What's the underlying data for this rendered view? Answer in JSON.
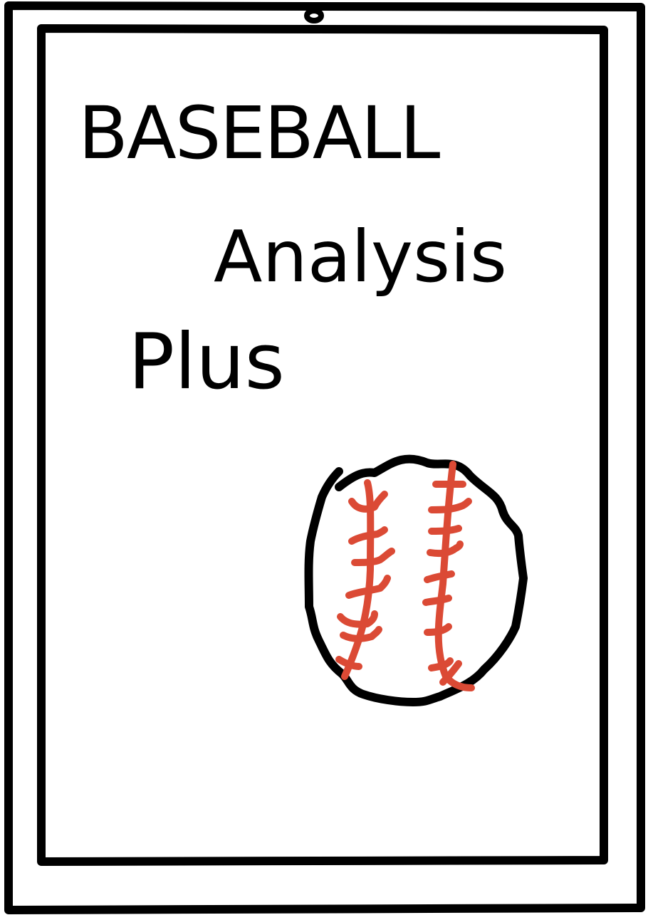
{
  "sketch": {
    "title_line1": "BASEBALL",
    "title_line2": "Analysis",
    "title_line3": "Plus",
    "ball_icon": "baseball-icon",
    "colors": {
      "ink": "#000000",
      "stitching": "#db4a35",
      "paper": "#ffffff"
    }
  }
}
